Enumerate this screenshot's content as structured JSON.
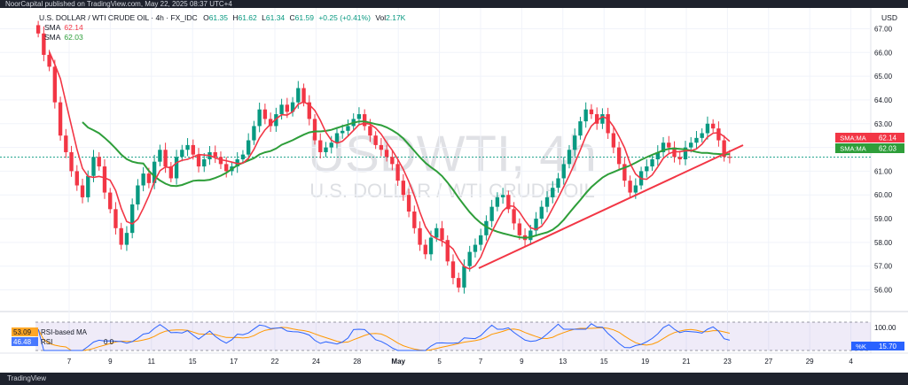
{
  "publish_bar": "NoorCapital published on TradingView.com, May 22, 2025 08:37 UTC+4",
  "footer_brand": "TradingView",
  "legend": {
    "title": "U.S. DOLLAR / WTI CRUDE OIL · 4h · FX_IDC",
    "open_label": "O",
    "open": "61.35",
    "high_label": "H",
    "high": "61.62",
    "low_label": "L",
    "low": "61.34",
    "close_label": "C",
    "close": "61.59",
    "change": "+0.25 (+0.41%)",
    "vol_label": "Vol",
    "vol": "2.17K",
    "sma1_label": "SMA",
    "sma1_value": "62.14",
    "sma2_label": "SMA",
    "sma2_value": "62.03"
  },
  "watermark": {
    "symbol": "USDWTI, 4h",
    "name": "U.S. DOLLAR / WTI CRUDE OIL"
  },
  "currency_label": "USD",
  "price_badges": [
    {
      "label": "SMA:MA",
      "value": "62.14",
      "color": "#f23645"
    },
    {
      "label": "SMA:MA",
      "value": "62.03",
      "color": "#2e9e3a"
    }
  ],
  "rsi": {
    "label_1": "RSI-based MA",
    "value_1": "53.09",
    "label_2": "RSI",
    "value_2": "46.48",
    "level_100": "100.00",
    "badge_label": "%K",
    "badge_value": "15.70",
    "zero_marks": "0 0"
  },
  "colors": {
    "up": "#089981",
    "down": "#f23645",
    "sma_fast": "#f23645",
    "sma_slow": "#2e9e3a",
    "trend": "#f23645",
    "rsi_blue": "#2962ff",
    "rsi_orange": "#ff9800"
  },
  "chart_data": {
    "type": "candlestick",
    "timeframe": "4h",
    "y_ticks": [
      "56.00",
      "57.00",
      "58.00",
      "59.00",
      "60.00",
      "61.00",
      "62.00",
      "63.00",
      "64.00",
      "65.00",
      "66.00",
      "67.00"
    ],
    "ylim": [
      55.2,
      67.8
    ],
    "x_ticks": [
      "7",
      "9",
      "11",
      "15",
      "17",
      "22",
      "24",
      "28",
      "May",
      "5",
      "7",
      "9",
      "13",
      "15",
      "19",
      "21",
      "23",
      "27",
      "29",
      "4"
    ],
    "current_price": 61.59,
    "closes": [
      66.8,
      65.9,
      65.4,
      63.9,
      62.5,
      61.8,
      61.0,
      60.4,
      59.9,
      60.8,
      61.6,
      61.2,
      60.1,
      59.4,
      58.6,
      57.9,
      58.4,
      59.6,
      60.4,
      60.9,
      60.5,
      61.4,
      61.9,
      61.2,
      60.7,
      61.6,
      61.9,
      62.1,
      61.7,
      61.2,
      61.5,
      61.8,
      61.6,
      61.3,
      61.0,
      61.2,
      61.5,
      61.7,
      62.3,
      62.9,
      63.6,
      63.2,
      62.9,
      63.4,
      63.8,
      63.5,
      63.9,
      64.5,
      63.9,
      63.2,
      62.3,
      61.8,
      62.0,
      62.2,
      62.6,
      62.7,
      62.9,
      63.2,
      63.4,
      62.9,
      62.5,
      62.1,
      61.9,
      61.6,
      61.3,
      60.6,
      60.0,
      59.3,
      58.6,
      57.9,
      57.5,
      58.2,
      58.6,
      58.1,
      57.2,
      56.5,
      56.1,
      57.0,
      57.6,
      57.9,
      58.3,
      58.9,
      59.5,
      59.9,
      60.0,
      59.4,
      58.8,
      58.3,
      58.1,
      58.5,
      59.0,
      59.5,
      59.9,
      60.3,
      60.7,
      61.3,
      61.9,
      62.5,
      63.1,
      63.6,
      63.4,
      63.0,
      63.4,
      62.6,
      62.0,
      61.3,
      60.6,
      60.1,
      60.4,
      61.0,
      61.2,
      61.5,
      61.8,
      62.2,
      62.0,
      61.6,
      61.5,
      62.0,
      62.2,
      62.4,
      62.6,
      63.0,
      62.8,
      62.3,
      61.6,
      61.59
    ]
  }
}
